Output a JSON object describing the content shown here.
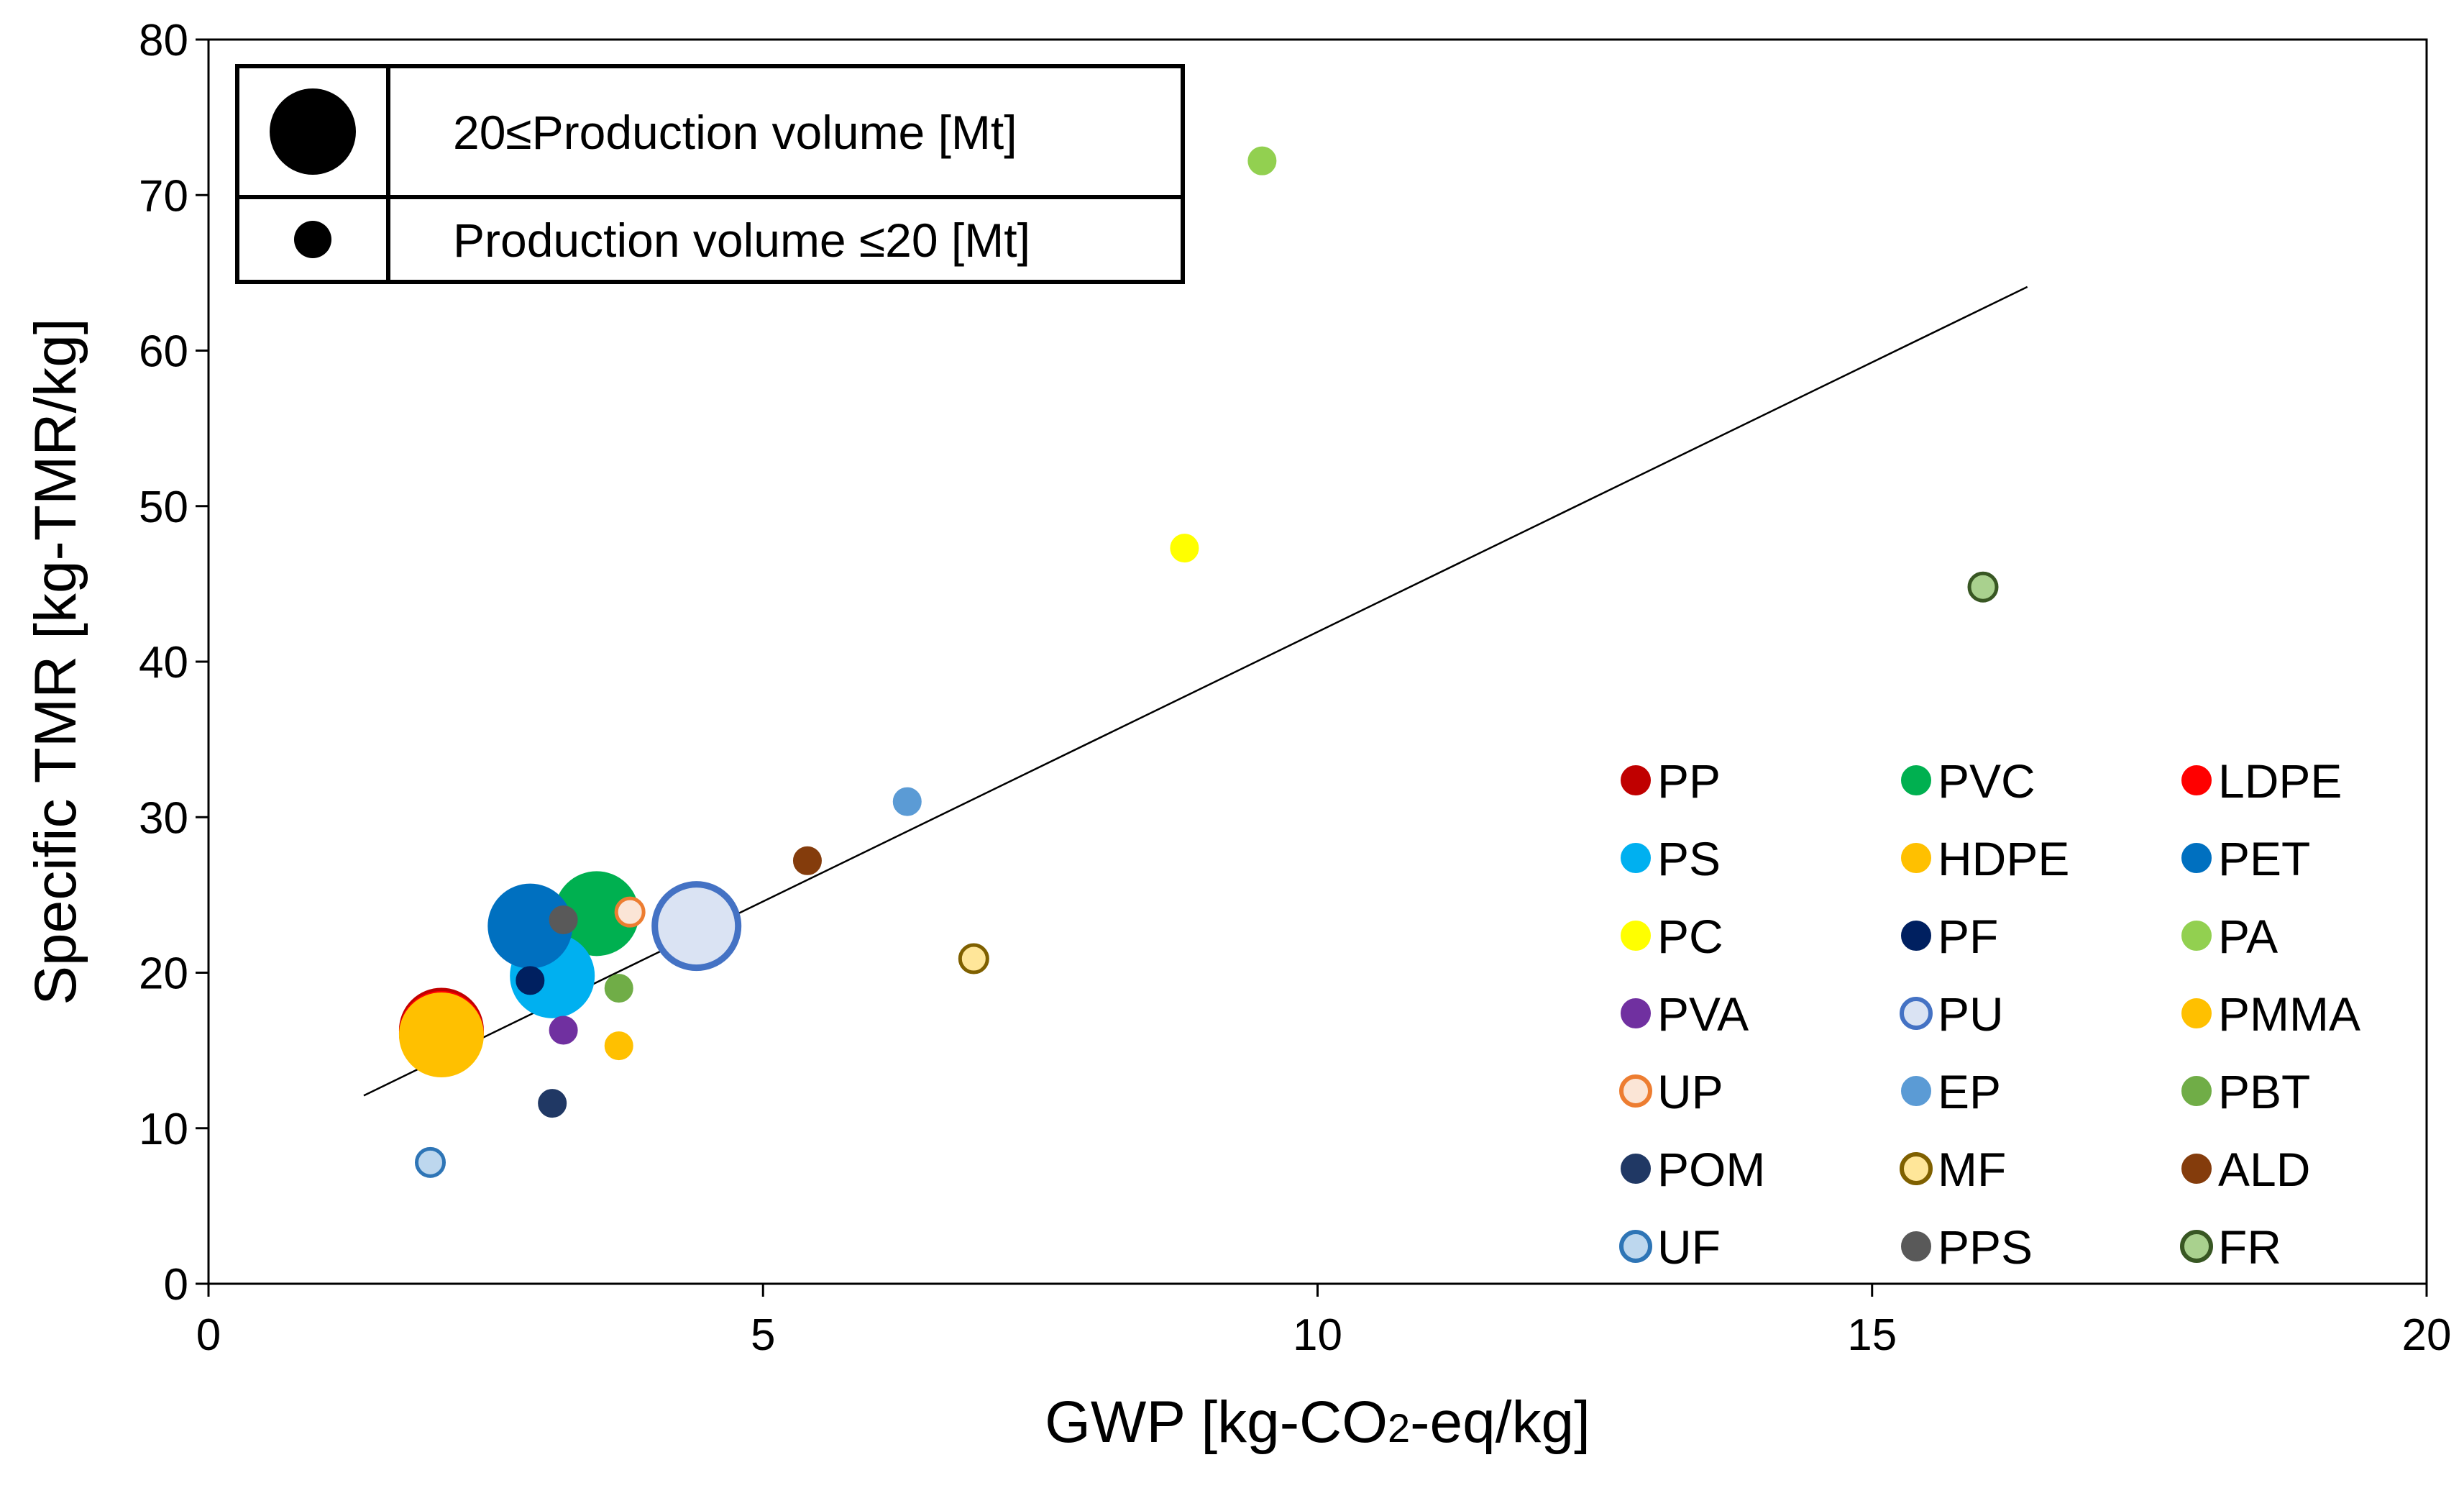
{
  "chart_data": {
    "type": "scatter",
    "xlabel": "GWP [kg-CO2-eq/kg]",
    "xlabel_parts": {
      "pre": "GWP [kg-CO",
      "sub": "2",
      "post": "-eq/kg]"
    },
    "ylabel": "Specific TMR [kg-TMR/kg]",
    "xlim": [
      0,
      20
    ],
    "ylim": [
      0,
      80
    ],
    "xticks": [
      0,
      5,
      10,
      15,
      20
    ],
    "yticks": [
      0,
      10,
      20,
      30,
      40,
      50,
      60,
      70,
      80
    ],
    "xtick_labels": [
      "0",
      "5",
      "10",
      "15",
      "20"
    ],
    "ytick_labels": [
      "0",
      "10",
      "20",
      "30",
      "40",
      "50",
      "60",
      "70",
      "80"
    ],
    "grid": false,
    "trendline": {
      "x": [
        1.4,
        16.4
      ],
      "y": [
        12.1,
        64.1
      ]
    },
    "size_legend": {
      "placement": "top-left",
      "entries": [
        {
          "label": "20≤Production volume [Mt]",
          "size": "large"
        },
        {
          "label": "Production volume ≤20 [Mt]",
          "size": "small"
        }
      ]
    },
    "legend_placement": "bottom-right",
    "series": [
      {
        "name": "PP",
        "x": 2.1,
        "y": 16.3,
        "size": "large",
        "fill": "#c00000",
        "stroke": "#c00000"
      },
      {
        "name": "PVC",
        "x": 3.5,
        "y": 23.8,
        "size": "large",
        "fill": "#00b050",
        "stroke": "#00b050"
      },
      {
        "name": "LDPE",
        "x": 2.1,
        "y": 16.1,
        "size": "large",
        "fill": "#ff0000",
        "stroke": "#ff0000"
      },
      {
        "name": "PS",
        "x": 3.1,
        "y": 19.8,
        "size": "large",
        "fill": "#00b0f0",
        "stroke": "#00b0f0"
      },
      {
        "name": "HDPE",
        "x": 2.1,
        "y": 16.0,
        "size": "large",
        "fill": "#ffc000",
        "stroke": "#ffc000"
      },
      {
        "name": "PET",
        "x": 2.9,
        "y": 23.0,
        "size": "large",
        "fill": "#0070c0",
        "stroke": "#0070c0"
      },
      {
        "name": "PC",
        "x": 8.8,
        "y": 47.3,
        "size": "small",
        "fill": "#ffff00",
        "stroke": "#ffff00"
      },
      {
        "name": "PF",
        "x": 2.9,
        "y": 19.5,
        "size": "small",
        "fill": "#002060",
        "stroke": "#002060"
      },
      {
        "name": "PA",
        "x": 9.5,
        "y": 72.2,
        "size": "small",
        "fill": "#92d050",
        "stroke": "#92d050"
      },
      {
        "name": "PVA",
        "x": 3.2,
        "y": 16.3,
        "size": "small",
        "fill": "#7030a0",
        "stroke": "#7030a0"
      },
      {
        "name": "PU",
        "x": 4.4,
        "y": 23.0,
        "size": "large",
        "fill": "#dae3f3",
        "stroke": "#4472c4"
      },
      {
        "name": "PMMA",
        "x": 3.7,
        "y": 15.3,
        "size": "small",
        "fill": "#ffc000",
        "stroke": "#ffc000"
      },
      {
        "name": "UP",
        "x": 3.8,
        "y": 23.9,
        "size": "small",
        "fill": "#fbe5d6",
        "stroke": "#ed7d31"
      },
      {
        "name": "EP",
        "x": 6.3,
        "y": 31.0,
        "size": "small",
        "fill": "#5b9bd5",
        "stroke": "#5b9bd5"
      },
      {
        "name": "PBT",
        "x": 3.7,
        "y": 19.0,
        "size": "small",
        "fill": "#70ad47",
        "stroke": "#70ad47"
      },
      {
        "name": "POM",
        "x": 3.1,
        "y": 11.6,
        "size": "small",
        "fill": "#203864",
        "stroke": "#203864"
      },
      {
        "name": "MF",
        "x": 6.9,
        "y": 20.9,
        "size": "small",
        "fill": "#ffe699",
        "stroke": "#7f6000"
      },
      {
        "name": "ALD",
        "x": 5.4,
        "y": 27.2,
        "size": "small",
        "fill": "#843c0c",
        "stroke": "#843c0c"
      },
      {
        "name": "UF",
        "x": 2.0,
        "y": 7.8,
        "size": "small",
        "fill": "#bdd7ee",
        "stroke": "#2e75b6"
      },
      {
        "name": "PPS",
        "x": 3.2,
        "y": 23.4,
        "size": "small",
        "fill": "#595959",
        "stroke": "#595959"
      },
      {
        "name": "FR",
        "x": 16.0,
        "y": 44.8,
        "size": "small",
        "fill": "#a9d18e",
        "stroke": "#385723"
      }
    ]
  }
}
